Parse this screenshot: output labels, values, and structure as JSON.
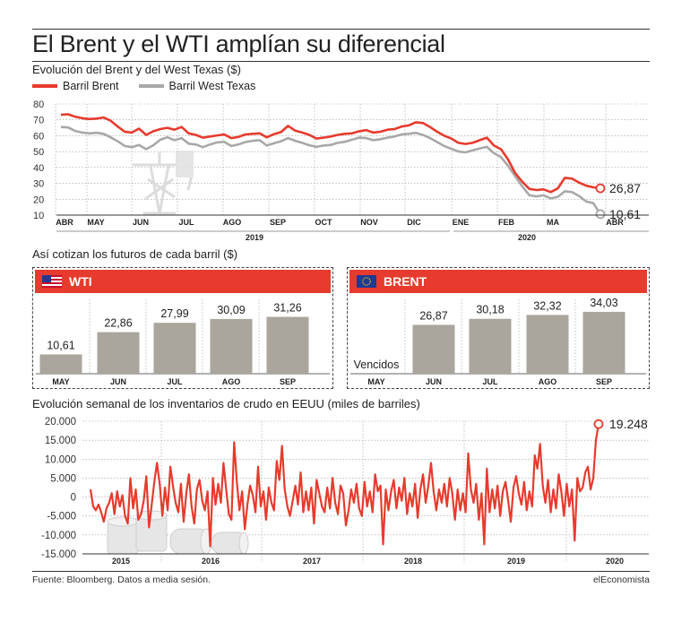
{
  "title": "El Brent y el WTI amplían su diferencial",
  "source": "Fuente: Bloomberg. Datos a media sesión.",
  "brand": "elEconomista",
  "colors": {
    "brent": "#e63b2e",
    "wti": "#a8a8a8",
    "bar": "#aaa59d",
    "accent": "#e63b2e"
  },
  "chart_data": [
    {
      "type": "line",
      "title": "Evolución del Brent y del West Texas ($)",
      "ylim": [
        10,
        80
      ],
      "yticks": [
        10,
        20,
        30,
        40,
        50,
        60,
        70,
        80
      ],
      "month_ticks": [
        "ABR",
        "MAY",
        "JUN",
        "JUL",
        "AGO",
        "SEP",
        "OCT",
        "NOV",
        "DIC",
        "ENE",
        "FEB",
        "MA",
        "ABR"
      ],
      "year_labels": [
        "2019",
        "2020"
      ],
      "grid": true,
      "legend_position": "top-left",
      "series": [
        {
          "name": "Barril Brent",
          "color": "#e63b2e",
          "end_label": "26,87",
          "values": [
            73.2,
            73.5,
            72.0,
            71.0,
            70.5,
            70.8,
            71.5,
            69.5,
            65.8,
            62.5,
            62.0,
            64.5,
            60.5,
            62.8,
            64.2,
            65.0,
            63.8,
            65.5,
            61.5,
            60.5,
            58.8,
            59.5,
            60.2,
            60.8,
            58.5,
            59.2,
            60.8,
            61.2,
            61.5,
            59.0,
            61.0,
            62.3,
            66.2,
            63.2,
            62.0,
            60.5,
            58.2,
            58.8,
            59.5,
            60.5,
            61.2,
            61.5,
            62.8,
            63.5,
            62.0,
            62.5,
            63.8,
            64.2,
            65.8,
            66.5,
            68.5,
            68.0,
            65.5,
            62.5,
            60.0,
            58.2,
            55.5,
            54.8,
            55.5,
            57.2,
            58.8,
            53.8,
            51.5,
            45.0,
            36.5,
            31.0,
            26.5,
            25.8,
            26.2,
            24.5,
            26.8,
            33.5,
            33.0,
            30.5,
            28.5,
            27.5,
            26.87
          ]
        },
        {
          "name": "Barril West Texas",
          "color": "#a8a8a8",
          "end_label": "10,61",
          "values": [
            65.5,
            65.2,
            63.0,
            62.0,
            61.5,
            61.8,
            61.2,
            59.0,
            56.5,
            53.5,
            52.8,
            54.2,
            51.5,
            54.0,
            57.5,
            59.0,
            57.2,
            58.5,
            55.0,
            54.5,
            52.8,
            54.5,
            55.8,
            56.2,
            53.5,
            54.5,
            56.0,
            56.8,
            57.2,
            53.8,
            55.2,
            56.5,
            58.5,
            56.8,
            55.5,
            54.0,
            53.0,
            53.8,
            54.2,
            55.5,
            56.2,
            57.5,
            58.8,
            58.5,
            57.2,
            57.8,
            58.8,
            59.5,
            60.8,
            61.2,
            61.8,
            60.5,
            58.5,
            56.0,
            53.5,
            51.8,
            50.0,
            49.5,
            50.8,
            52.0,
            53.0,
            49.0,
            46.5,
            41.0,
            34.5,
            28.0,
            22.5,
            21.8,
            22.5,
            20.5,
            21.5,
            25.0,
            24.5,
            22.0,
            18.5,
            17.5,
            10.61
          ]
        }
      ]
    },
    {
      "type": "bar",
      "title": "Así cotizan los futuros de cada barril ($)",
      "panels": [
        {
          "name": "WTI",
          "categories": [
            "MAY",
            "JUN",
            "JUL",
            "AGO",
            "SEP"
          ],
          "values": [
            10.61,
            22.86,
            27.99,
            30.09,
            31.26
          ],
          "labels": [
            "10,61",
            "22,86",
            "27,99",
            "30,09",
            "31,26"
          ]
        },
        {
          "name": "BRENT",
          "categories": [
            "MAY",
            "JUN",
            "JUL",
            "AGO",
            "SEP"
          ],
          "values": [
            null,
            26.87,
            30.18,
            32.32,
            34.03
          ],
          "labels": [
            "Vencidos",
            "26,87",
            "30,18",
            "32,32",
            "34,03"
          ]
        }
      ]
    },
    {
      "type": "line",
      "title": "Evolución semanal de los inventarios de crudo en EEUU (miles de barriles)",
      "ylim": [
        -15000,
        20000
      ],
      "yticks": [
        -15000,
        -10000,
        -5000,
        0,
        5000,
        10000,
        15000,
        20000
      ],
      "ytick_labels": [
        "-15.000",
        "-10.000",
        "-5.000",
        "0",
        "5.000",
        "10.000",
        "15.000",
        "20.000"
      ],
      "years": [
        "2015",
        "2016",
        "2017",
        "2018",
        "2019",
        "2020"
      ],
      "end_label": "19.248",
      "grid": true,
      "series": [
        {
          "color": "#e63b2e",
          "values": [
            2000,
            -2500,
            -3500,
            -2000,
            -4000,
            -6500,
            -3000,
            -1500,
            1000,
            -4500,
            1500,
            -2500,
            500,
            -5000,
            -7000,
            5000,
            -3000,
            2000,
            -6000,
            -4500,
            -1000,
            5500,
            -8000,
            -2000,
            4000,
            9000,
            3500,
            -5000,
            2500,
            -3500,
            8000,
            3000,
            -1500,
            -4000,
            3500,
            -6500,
            1000,
            6000,
            -2500,
            -7000,
            2000,
            4500,
            -1000,
            -3500,
            1500,
            -13000,
            5000,
            -2000,
            3500,
            -1500,
            9000,
            2000,
            -4500,
            -6000,
            14500,
            4000,
            -3500,
            1500,
            -8500,
            -2000,
            3000,
            500,
            -4000,
            8000,
            -2500,
            1500,
            -6000,
            2500,
            -1500,
            -3500,
            9500,
            4500,
            13500,
            2000,
            -2500,
            -5000,
            -1000,
            3000,
            -2000,
            6500,
            -4000,
            1500,
            -3500,
            2500,
            -7000,
            4500,
            1000,
            -2500,
            -4000,
            2500,
            -3000,
            5000,
            -1500,
            -4500,
            3000,
            1000,
            -7500,
            -3500,
            2000,
            -1500,
            3500,
            -3000,
            -5000,
            4000,
            -2500,
            1500,
            -4000,
            6000,
            1500,
            3000,
            -12500,
            2000,
            -3500,
            1500,
            4500,
            -3000,
            2500,
            -1000,
            5000,
            -4500,
            1000,
            -2500,
            3500,
            -5500,
            2000,
            6000,
            -1500,
            3000,
            9000,
            1500,
            -3500,
            2000,
            -1500,
            3500,
            -2500,
            5000,
            1000,
            -6000,
            2000,
            -3500,
            1000,
            -4000,
            11500,
            2000,
            -1500,
            3500,
            -6000,
            1000,
            -12500,
            7500,
            -4000,
            2000,
            -3000,
            3000,
            -5000,
            1500,
            4000,
            -1000,
            -6500,
            2500,
            5500,
            1000,
            -2000,
            4000,
            -3500,
            1500,
            -2500,
            11000,
            7500,
            14000,
            3000,
            -1500,
            4500,
            -4000,
            2000,
            -3000,
            6000,
            1500,
            -5000,
            3500,
            -2500,
            2000,
            -11500,
            5000,
            1500,
            2500,
            6500,
            8000,
            2000,
            5000,
            15000,
            19248
          ]
        }
      ]
    }
  ]
}
